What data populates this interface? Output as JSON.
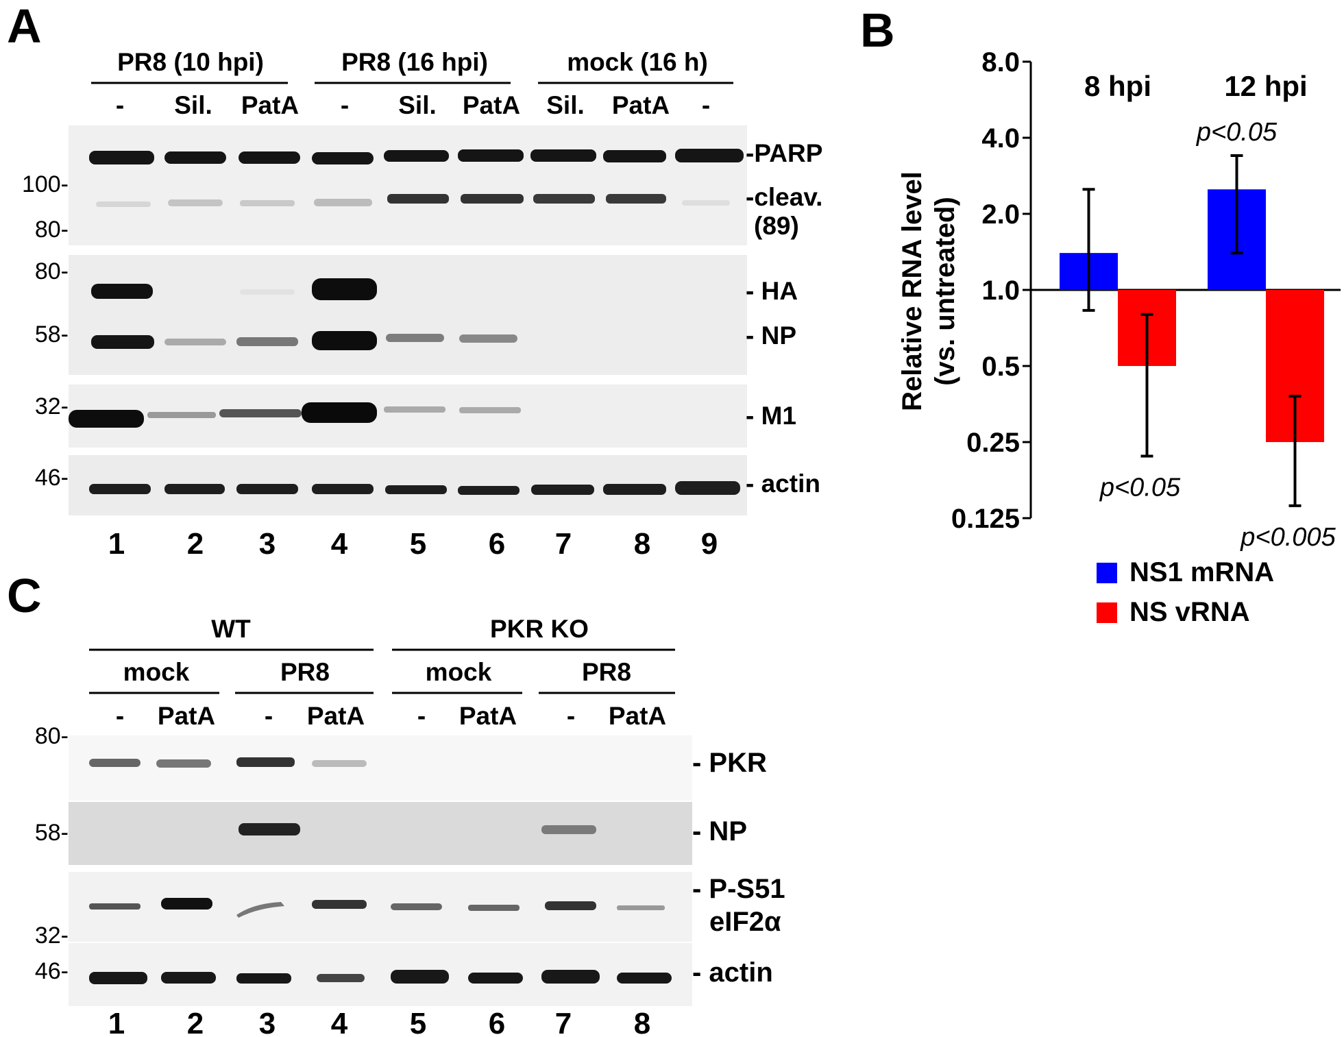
{
  "panelA": {
    "label": "A",
    "groups": [
      "PR8 (10 hpi)",
      "PR8 (16 hpi)",
      "mock (16 h)"
    ],
    "treatments": [
      "-",
      "Sil.",
      "PatA",
      "-",
      "Sil.",
      "PatA",
      "Sil.",
      "PatA",
      "-"
    ],
    "mw_markers": [
      "100-",
      "80-",
      "80-",
      "58-",
      "32-",
      "46-"
    ],
    "band_labels": [
      "-PARP",
      "-cleav.",
      "(89)",
      "- HA",
      "- NP",
      "- M1",
      "- actin"
    ],
    "lanes": [
      "1",
      "2",
      "3",
      "4",
      "5",
      "6",
      "7",
      "8",
      "9"
    ]
  },
  "panelB": {
    "label": "B",
    "chart_data": {
      "type": "bar",
      "scale": "log2",
      "baseline": 1.0,
      "categories": [
        "8 hpi",
        "12 hpi"
      ],
      "ylabel_line1": "Relative RNA level",
      "ylabel_line2": "(vs. untreated)",
      "yticks": [
        "8.0",
        "4.0",
        "2.0",
        "1.0",
        "0.5",
        "0.25",
        "0.125"
      ],
      "ylim": [
        0.125,
        8.0
      ],
      "legend_position": "bottom",
      "series": [
        {
          "name": "NS1 mRNA",
          "color": "#0000ff",
          "values": [
            1.4,
            2.5
          ],
          "err_low": [
            0.83,
            1.4
          ],
          "err_high": [
            2.5,
            3.4
          ]
        },
        {
          "name": "NS vRNA",
          "color": "#ff0000",
          "values": [
            0.5,
            0.25
          ],
          "err_low": [
            0.22,
            0.14
          ],
          "err_high": [
            0.8,
            0.38
          ]
        }
      ],
      "pvalues": [
        {
          "text": "p<0.05",
          "category": "8 hpi",
          "series": "NS vRNA"
        },
        {
          "text": "p<0.05",
          "category": "12 hpi",
          "series": "NS1 mRNA"
        },
        {
          "text": "p<0.005",
          "category": "12 hpi",
          "series": "NS vRNA"
        }
      ]
    }
  },
  "panelC": {
    "label": "C",
    "genotypes": [
      "WT",
      "PKR KO"
    ],
    "infections": [
      "mock",
      "PR8",
      "mock",
      "PR8"
    ],
    "treatments": [
      "-",
      "PatA",
      "-",
      "PatA",
      "-",
      "PatA",
      "-",
      "PatA"
    ],
    "mw_markers": [
      "80-",
      "58-",
      "32-",
      "46-"
    ],
    "band_labels": [
      "- PKR",
      "- NP",
      "- P-S51",
      "eIF2α",
      "- actin"
    ],
    "lanes": [
      "1",
      "2",
      "3",
      "4",
      "5",
      "6",
      "7",
      "8"
    ]
  }
}
